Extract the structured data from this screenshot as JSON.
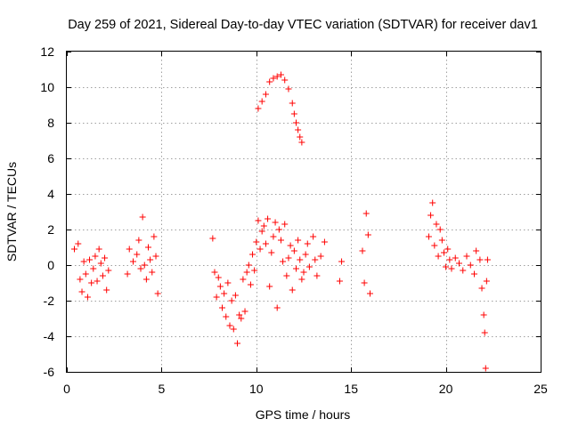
{
  "chart_data": {
    "type": "scatter",
    "title": "Day 259 of 2021, Sidereal Day-to-day VTEC variation (SDTVAR) for receiver dav1",
    "xlabel": "GPS time / hours",
    "ylabel": "SDTVAR / TECUs",
    "xlim": [
      0,
      25
    ],
    "ylim": [
      -6,
      12
    ],
    "xticks": [
      0,
      5,
      10,
      15,
      20,
      25
    ],
    "xtick_labels": [
      "0",
      "5",
      "10",
      "15",
      "20",
      "25"
    ],
    "yticks": [
      -6,
      -4,
      -2,
      0,
      2,
      4,
      6,
      8,
      10,
      12
    ],
    "ytick_labels": [
      "-6",
      "-4",
      "-2",
      "0",
      "2",
      "4",
      "6",
      "8",
      "10",
      "12"
    ],
    "grid": true,
    "marker": "+",
    "color": "#ff0000",
    "series": [
      {
        "name": "SDTVAR",
        "points": [
          [
            0.4,
            0.9
          ],
          [
            0.6,
            1.2
          ],
          [
            0.7,
            -0.8
          ],
          [
            0.8,
            -1.5
          ],
          [
            0.9,
            0.2
          ],
          [
            1.0,
            -0.5
          ],
          [
            1.1,
            -1.8
          ],
          [
            1.2,
            0.3
          ],
          [
            1.3,
            -1.0
          ],
          [
            1.4,
            -0.2
          ],
          [
            1.5,
            0.5
          ],
          [
            1.6,
            -0.9
          ],
          [
            1.7,
            0.9
          ],
          [
            1.8,
            0.1
          ],
          [
            1.9,
            -0.6
          ],
          [
            2.0,
            0.4
          ],
          [
            2.1,
            -1.4
          ],
          [
            2.2,
            -0.3
          ],
          [
            3.2,
            -0.5
          ],
          [
            3.3,
            0.9
          ],
          [
            3.5,
            0.2
          ],
          [
            3.7,
            0.6
          ],
          [
            3.8,
            1.4
          ],
          [
            3.9,
            -0.2
          ],
          [
            4.0,
            2.7
          ],
          [
            4.1,
            0.0
          ],
          [
            4.2,
            -0.8
          ],
          [
            4.3,
            1.0
          ],
          [
            4.4,
            0.3
          ],
          [
            4.5,
            -0.4
          ],
          [
            4.6,
            1.6
          ],
          [
            4.7,
            0.5
          ],
          [
            4.8,
            -1.6
          ],
          [
            7.7,
            1.5
          ],
          [
            7.8,
            -0.4
          ],
          [
            7.9,
            -1.8
          ],
          [
            8.0,
            -0.7
          ],
          [
            8.1,
            -1.2
          ],
          [
            8.2,
            -2.4
          ],
          [
            8.3,
            -1.6
          ],
          [
            8.4,
            -2.9
          ],
          [
            8.5,
            -1.0
          ],
          [
            8.6,
            -3.4
          ],
          [
            8.7,
            -2.0
          ],
          [
            8.8,
            -3.6
          ],
          [
            8.9,
            -1.7
          ],
          [
            9.0,
            -4.4
          ],
          [
            9.1,
            -2.8
          ],
          [
            9.2,
            -3.0
          ],
          [
            9.3,
            -0.8
          ],
          [
            9.4,
            -2.6
          ],
          [
            9.5,
            -0.4
          ],
          [
            9.6,
            0.0
          ],
          [
            9.7,
            -1.1
          ],
          [
            9.8,
            0.6
          ],
          [
            9.9,
            -0.3
          ],
          [
            10.0,
            1.3
          ],
          [
            10.1,
            2.5
          ],
          [
            10.2,
            0.9
          ],
          [
            10.3,
            1.9
          ],
          [
            10.4,
            2.2
          ],
          [
            10.5,
            1.2
          ],
          [
            10.6,
            2.6
          ],
          [
            10.7,
            -1.2
          ],
          [
            10.8,
            0.7
          ],
          [
            10.9,
            1.6
          ],
          [
            11.0,
            2.4
          ],
          [
            11.1,
            -2.4
          ],
          [
            11.2,
            2.0
          ],
          [
            11.3,
            1.4
          ],
          [
            11.4,
            0.2
          ],
          [
            11.5,
            2.3
          ],
          [
            11.6,
            -0.6
          ],
          [
            11.7,
            0.4
          ],
          [
            11.8,
            1.1
          ],
          [
            11.9,
            -1.4
          ],
          [
            12.0,
            0.8
          ],
          [
            12.1,
            -0.2
          ],
          [
            12.2,
            1.4
          ],
          [
            12.3,
            0.3
          ],
          [
            12.4,
            -0.8
          ],
          [
            12.5,
            -0.4
          ],
          [
            12.6,
            0.6
          ],
          [
            12.7,
            1.2
          ],
          [
            12.8,
            -0.1
          ],
          [
            13.0,
            1.6
          ],
          [
            13.1,
            0.3
          ],
          [
            13.2,
            -0.6
          ],
          [
            13.4,
            0.5
          ],
          [
            13.6,
            1.3
          ],
          [
            10.1,
            8.8
          ],
          [
            10.3,
            9.2
          ],
          [
            10.5,
            9.6
          ],
          [
            10.7,
            10.3
          ],
          [
            10.9,
            10.5
          ],
          [
            11.1,
            10.6
          ],
          [
            11.3,
            10.7
          ],
          [
            11.5,
            10.4
          ],
          [
            11.7,
            9.9
          ],
          [
            11.9,
            9.1
          ],
          [
            12.0,
            8.5
          ],
          [
            12.1,
            8.0
          ],
          [
            12.2,
            7.6
          ],
          [
            12.3,
            7.2
          ],
          [
            12.4,
            6.9
          ],
          [
            14.4,
            -0.9
          ],
          [
            14.5,
            0.2
          ],
          [
            15.6,
            0.8
          ],
          [
            15.7,
            -1.0
          ],
          [
            15.8,
            2.9
          ],
          [
            15.9,
            1.7
          ],
          [
            16.0,
            -1.6
          ],
          [
            19.1,
            1.6
          ],
          [
            19.2,
            2.8
          ],
          [
            19.3,
            3.5
          ],
          [
            19.4,
            1.1
          ],
          [
            19.5,
            2.3
          ],
          [
            19.6,
            0.5
          ],
          [
            19.7,
            2.0
          ],
          [
            19.8,
            1.4
          ],
          [
            19.9,
            0.7
          ],
          [
            20.0,
            -0.1
          ],
          [
            20.1,
            0.9
          ],
          [
            20.2,
            0.3
          ],
          [
            20.3,
            -0.2
          ],
          [
            20.5,
            0.4
          ],
          [
            20.7,
            0.1
          ],
          [
            20.9,
            -0.3
          ],
          [
            21.1,
            0.5
          ],
          [
            21.3,
            0.0
          ],
          [
            21.5,
            -0.5
          ],
          [
            21.6,
            0.8
          ],
          [
            21.8,
            0.3
          ],
          [
            21.9,
            -1.3
          ],
          [
            22.0,
            -2.8
          ],
          [
            22.05,
            -3.8
          ],
          [
            22.1,
            -5.8
          ],
          [
            22.15,
            -0.9
          ],
          [
            22.2,
            0.3
          ]
        ]
      }
    ]
  }
}
